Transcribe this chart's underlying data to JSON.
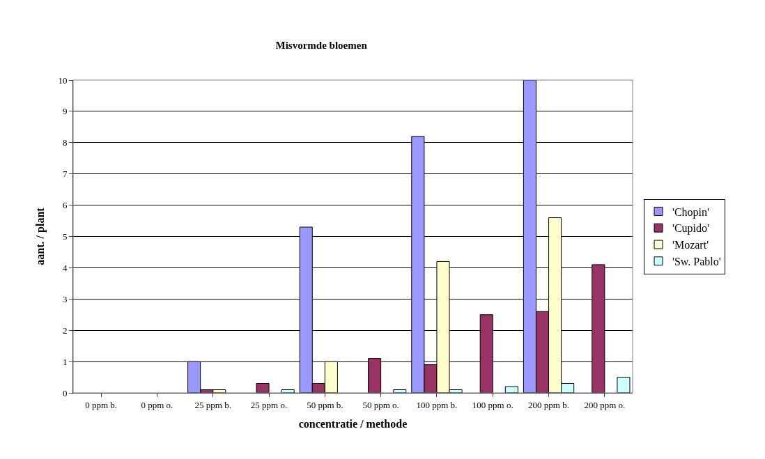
{
  "chart_data": {
    "type": "bar",
    "title": "Misvormde bloemen",
    "xlabel": "concentratie / methode",
    "ylabel": "aant. / plant",
    "categories": [
      "0 ppm b.",
      "0 ppm o.",
      "25 ppm b.",
      "25 ppm o.",
      "50 ppm b.",
      "50 ppm o.",
      "100 ppm b.",
      "100 ppm o.",
      "200 ppm b.",
      "200 ppm o."
    ],
    "series": [
      {
        "name": "'Chopin'",
        "color": "#9999ff",
        "values": [
          null,
          null,
          1,
          null,
          5.3,
          null,
          8.2,
          null,
          10,
          null
        ]
      },
      {
        "name": "'Cupido'",
        "color": "#993366",
        "values": [
          null,
          null,
          0.1,
          0.3,
          0.3,
          1.1,
          0.9,
          2.5,
          2.6,
          4.1
        ]
      },
      {
        "name": "'Mozart'",
        "color": "#ffffcc",
        "values": [
          null,
          null,
          0.1,
          null,
          1,
          null,
          4.2,
          null,
          5.6,
          null
        ]
      },
      {
        "name": "'Sw. Pablo'",
        "color": "#ccffff",
        "values": [
          null,
          null,
          null,
          0.1,
          null,
          0.1,
          0.1,
          0.2,
          0.3,
          0.5
        ]
      }
    ],
    "ylim": [
      0,
      10
    ],
    "yticks": [
      0,
      1,
      2,
      3,
      4,
      5,
      6,
      7,
      8,
      9,
      10
    ],
    "grid": "y",
    "legend": "right"
  }
}
